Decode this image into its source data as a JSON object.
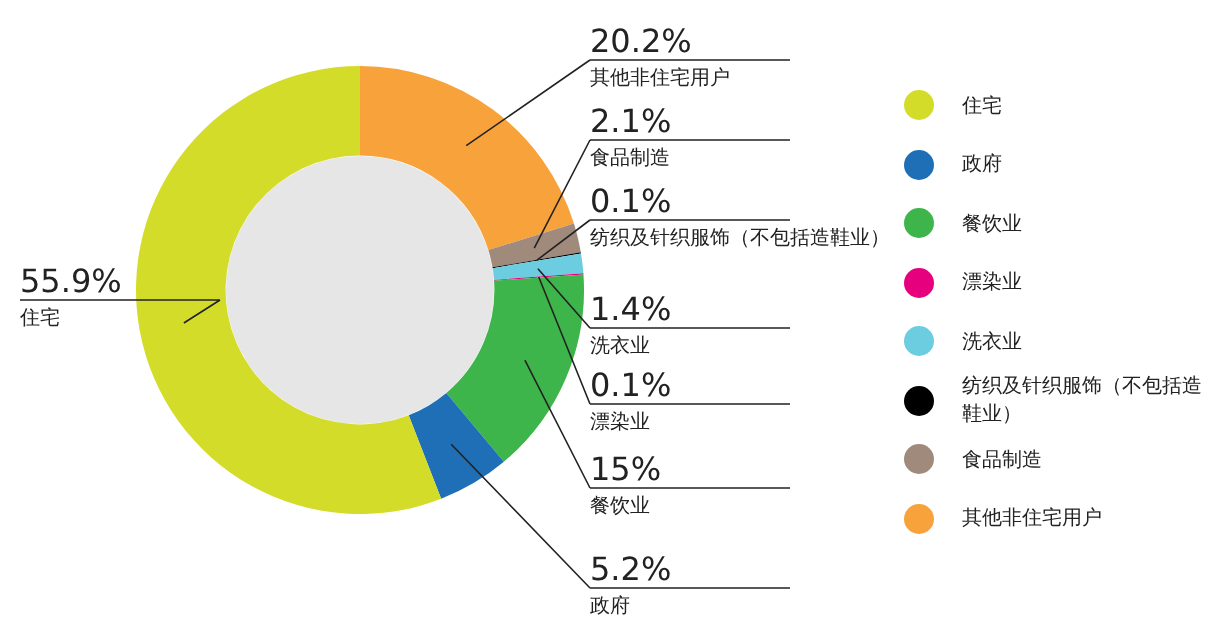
{
  "chart_data": {
    "type": "donut",
    "categories": [
      "住宅",
      "政府",
      "餐饮业",
      "漂染业",
      "洗衣业",
      "纺织及针织服饰（不包括造鞋业）",
      "食品制造",
      "其他非住宅用户"
    ],
    "values": [
      55.9,
      5.2,
      15,
      0.1,
      1.4,
      0.1,
      2.1,
      20.2
    ],
    "value_labels": [
      "55.9%",
      "5.2%",
      "15%",
      "0.1%",
      "1.4%",
      "0.1%",
      "2.1%",
      "20.2%"
    ],
    "colors": [
      "#d4dc2a",
      "#1f6fb6",
      "#3db54a",
      "#e6007e",
      "#6ccde0",
      "#000000",
      "#a08a7c",
      "#f7a23b"
    ],
    "legend": "right"
  }
}
